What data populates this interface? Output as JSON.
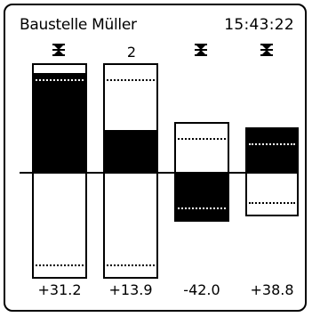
{
  "header": {
    "title": "Baustelle Müller",
    "time": "15:43:22"
  },
  "columns": [
    {
      "top_label": "",
      "top_icon": "hourglass-icon",
      "value": "+31.2"
    },
    {
      "top_label": "2",
      "top_icon": "",
      "value": "+13.9"
    },
    {
      "top_label": "",
      "top_icon": "hourglass-icon",
      "value": "-42.0"
    },
    {
      "top_label": "",
      "top_icon": "hourglass-icon",
      "value": "+38.8"
    }
  ]
}
